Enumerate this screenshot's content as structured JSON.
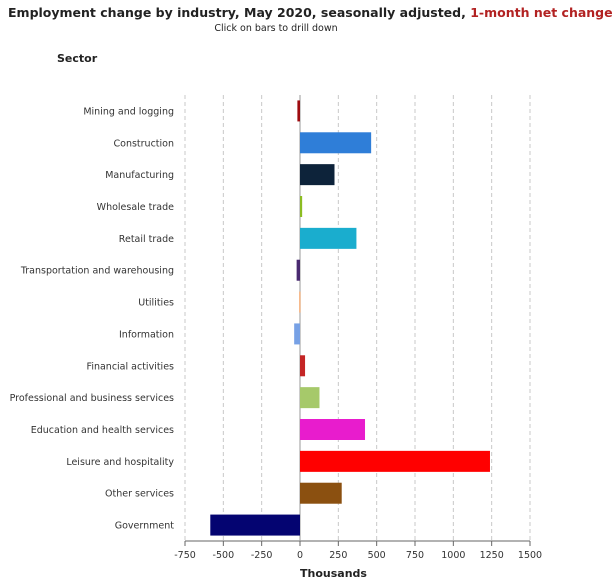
{
  "header": {
    "title_main": "Employment change by industry, May 2020, seasonally adjusted, ",
    "title_accent": "1-month net change",
    "subtitle": "Click on bars to drill down",
    "sector_label": "Sector"
  },
  "chart_data": {
    "type": "bar",
    "orientation": "horizontal",
    "title": "Employment change by industry, May 2020, seasonally adjusted, 1-month net change",
    "subtitle": "Click on bars to drill down",
    "xlabel": "Thousands",
    "ylabel": "Sector",
    "xlim": [
      -750,
      1500
    ],
    "xticks": [
      -750,
      -500,
      -250,
      0,
      250,
      500,
      750,
      1000,
      1250,
      1500
    ],
    "xtick_labels": [
      "-750",
      "-500",
      "-250",
      "0",
      "250",
      "500",
      "750",
      "1000",
      "1250",
      "1500"
    ],
    "grid": "vertical dashed",
    "categories": [
      "Mining and logging",
      "Construction",
      "Manufacturing",
      "Wholesale trade",
      "Retail trade",
      "Transportation and warehousing",
      "Utilities",
      "Information",
      "Financial activities",
      "Professional and business services",
      "Education and health services",
      "Leisure and hospitality",
      "Other services",
      "Government"
    ],
    "values": [
      -17,
      464,
      225,
      14,
      368,
      -22,
      -4,
      -38,
      33,
      127,
      424,
      1239,
      272,
      -585
    ],
    "colors": [
      "#9e0b0f",
      "#2f7ed8",
      "#0d233a",
      "#8bbc21",
      "#1aadce",
      "#492970",
      "#f28f43",
      "#77a1e5",
      "#c42525",
      "#a6c96a",
      "#e81ccd",
      "#ff0000",
      "#8b5010",
      "#040471"
    ]
  }
}
